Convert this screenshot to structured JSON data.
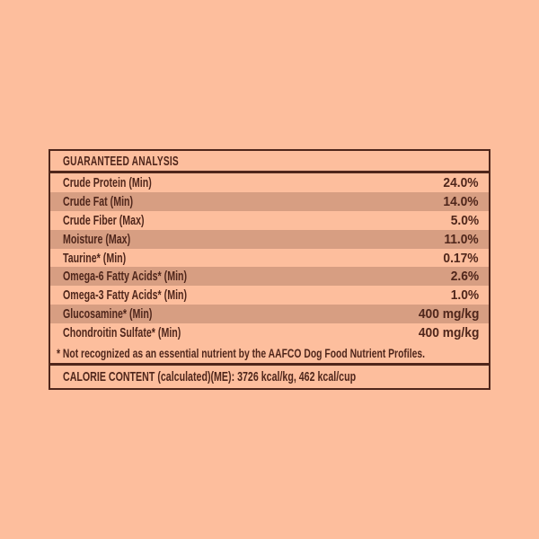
{
  "colors": {
    "background": "#fdbe9d",
    "stripe": "#d79e82",
    "ink": "#4f261b"
  },
  "label": {
    "title": "GUARANTEED ANALYSIS",
    "rows": [
      {
        "label": "Crude Protein (Min)",
        "value": "24.0%"
      },
      {
        "label": "Crude Fat (Min)",
        "value": "14.0%"
      },
      {
        "label": "Crude Fiber (Max)",
        "value": "5.0%"
      },
      {
        "label": "Moisture (Max)",
        "value": "11.0%"
      },
      {
        "label": "Taurine* (Min)",
        "value": "0.17%"
      },
      {
        "label": "Omega-6 Fatty Acids* (Min)",
        "value": "2.6%"
      },
      {
        "label": "Omega-3 Fatty Acids* (Min)",
        "value": "1.0%"
      },
      {
        "label": "Glucosamine* (Min)",
        "value": "400 mg/kg"
      },
      {
        "label": "Chondroitin Sulfate* (Min)",
        "value": "400 mg/kg"
      }
    ],
    "footnote": "* Not recognized as an essential nutrient by the AAFCO Dog Food Nutrient Profiles.",
    "calorie_content": "CALORIE CONTENT (calculated)(ME): 3726 kcal/kg, 462 kcal/cup"
  }
}
